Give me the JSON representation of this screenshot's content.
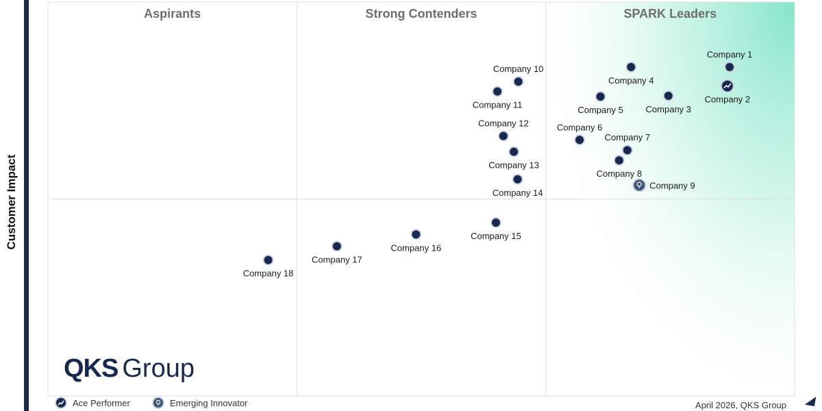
{
  "chart_data": {
    "type": "scatter",
    "ylabel": "Customer Impact",
    "xlabel": "",
    "quadrants": [
      "Aspirants",
      "Strong Contenders",
      "SPARK Leaders"
    ],
    "xlim": [
      0,
      100
    ],
    "ylim": [
      0,
      100
    ],
    "points": [
      {
        "label": "Company 1",
        "x": 91.3,
        "y": 83.5,
        "badge": "",
        "label_pos": "above"
      },
      {
        "label": "Company 2",
        "x": 91.0,
        "y": 78.7,
        "badge": "ace",
        "label_pos": "below"
      },
      {
        "label": "Company 3",
        "x": 83.1,
        "y": 76.2,
        "badge": "",
        "label_pos": "below"
      },
      {
        "label": "Company 4",
        "x": 78.1,
        "y": 83.5,
        "badge": "",
        "label_pos": "below"
      },
      {
        "label": "Company 5",
        "x": 74.0,
        "y": 76.0,
        "badge": "",
        "label_pos": "below"
      },
      {
        "label": "Company 6",
        "x": 71.2,
        "y": 65.0,
        "badge": "",
        "label_pos": "above"
      },
      {
        "label": "Company 7",
        "x": 77.6,
        "y": 62.4,
        "badge": "",
        "label_pos": "above"
      },
      {
        "label": "Company 8",
        "x": 76.5,
        "y": 59.8,
        "badge": "",
        "label_pos": "below"
      },
      {
        "label": "Company 9",
        "x": 79.2,
        "y": 53.5,
        "badge": "innovator",
        "label_pos": "right"
      },
      {
        "label": "Company 10",
        "x": 63.0,
        "y": 79.8,
        "badge": "",
        "label_pos": "above"
      },
      {
        "label": "Company 11",
        "x": 60.2,
        "y": 77.3,
        "badge": "",
        "label_pos": "below"
      },
      {
        "label": "Company 12",
        "x": 61.0,
        "y": 66.0,
        "badge": "",
        "label_pos": "above"
      },
      {
        "label": "Company 13",
        "x": 62.4,
        "y": 62.0,
        "badge": "",
        "label_pos": "below"
      },
      {
        "label": "Company 14",
        "x": 62.9,
        "y": 55.0,
        "badge": "",
        "label_pos": "below"
      },
      {
        "label": "Company 15",
        "x": 60.0,
        "y": 44.0,
        "badge": "",
        "label_pos": "below"
      },
      {
        "label": "Company 16",
        "x": 49.3,
        "y": 41.0,
        "badge": "",
        "label_pos": "below"
      },
      {
        "label": "Company 17",
        "x": 38.7,
        "y": 38.0,
        "badge": "",
        "label_pos": "below"
      },
      {
        "label": "Company 18",
        "x": 29.5,
        "y": 34.5,
        "badge": "",
        "label_pos": "below"
      }
    ],
    "grid": true,
    "legend": "bottom-left"
  },
  "legend": {
    "ace_label": "Ace Performer",
    "innovator_label": "Emerging Innovator"
  },
  "logo": {
    "bold": "QKS",
    "light": "Group"
  },
  "footer": "April 2026, QKS Group",
  "colors": {
    "marker": "#17294f",
    "leader_gradient": "#7fe3c4",
    "quadrant_title": "#6e6e6e"
  }
}
